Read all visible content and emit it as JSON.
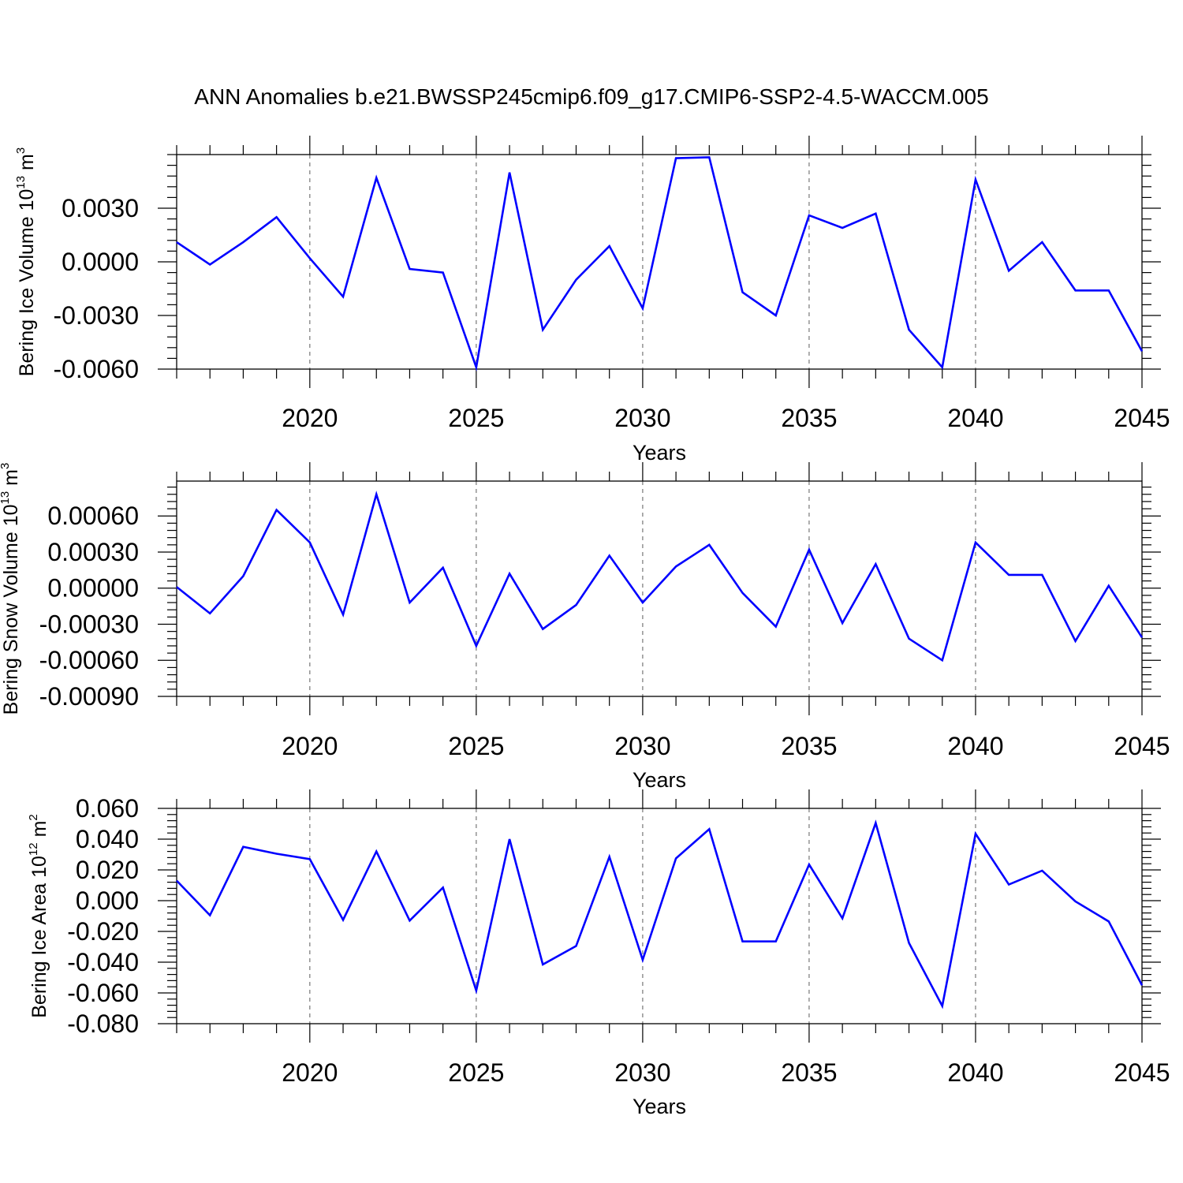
{
  "figure": {
    "title": "ANN Anomalies b.e21.BWSSP245cmip6.f09_g17.CMIP6-SSP2-4.5-WACCM.005"
  },
  "chart_data": [
    {
      "type": "line",
      "ylabel": {
        "text": "Bering Ice Volume 10",
        "sup": "13",
        "unit": " m",
        "unit_sup": "3"
      },
      "xlabel": "Years",
      "xlim": [
        2016,
        2045
      ],
      "ylim": [
        -0.006,
        0.006
      ],
      "x_ticks": [
        2020,
        2025,
        2030,
        2035,
        2040,
        2045
      ],
      "x_tick_labels": [
        "2020",
        "2025",
        "2030",
        "2035",
        "2040",
        "2045"
      ],
      "y_ticks": [
        0.003,
        0.0,
        -0.003,
        -0.006
      ],
      "y_tick_labels": [
        "0.0030",
        "0.0000",
        "-0.0030",
        "-0.0060"
      ],
      "line_color": "#0000ff",
      "vertical_grid": true,
      "series": [
        {
          "x": [
            2016,
            2017,
            2018,
            2019,
            2020,
            2021,
            2022,
            2023,
            2024,
            2025,
            2026,
            2027,
            2028,
            2029,
            2030,
            2031,
            2032,
            2033,
            2034,
            2035,
            2036,
            2037,
            2038,
            2039,
            2040,
            2041,
            2042,
            2043,
            2044,
            2045
          ],
          "y": [
            0.0011,
            -0.00015,
            0.0011,
            0.0025,
            0.0002,
            -0.00195,
            0.0047,
            -0.0004,
            -0.0006,
            -0.0059,
            0.005,
            -0.0038,
            -0.001,
            0.00088,
            -0.0026,
            0.0058,
            0.00585,
            -0.0017,
            -0.003,
            0.0026,
            0.0019,
            0.0027,
            -0.0038,
            -0.0059,
            0.0046,
            -0.0005,
            0.0011,
            -0.0016,
            -0.0016,
            -0.005
          ]
        }
      ]
    },
    {
      "type": "line",
      "ylabel": {
        "text": "Bering Snow Volume 10",
        "sup": "13",
        "unit": " m",
        "unit_sup": "3"
      },
      "xlabel": "Years",
      "xlim": [
        2016,
        2045
      ],
      "ylim": [
        -0.0009,
        0.00089
      ],
      "x_ticks": [
        2020,
        2025,
        2030,
        2035,
        2040,
        2045
      ],
      "x_tick_labels": [
        "2020",
        "2025",
        "2030",
        "2035",
        "2040",
        "2045"
      ],
      "y_ticks": [
        0.0006,
        0.0003,
        0.0,
        -0.0003,
        -0.0006,
        -0.0009
      ],
      "y_tick_labels": [
        "0.00060",
        "0.00030",
        "0.00000",
        "-0.00030",
        "-0.00060",
        "-0.00090"
      ],
      "line_color": "#0000ff",
      "vertical_grid": true,
      "series": [
        {
          "x": [
            2016,
            2017,
            2018,
            2019,
            2020,
            2021,
            2022,
            2023,
            2024,
            2025,
            2026,
            2027,
            2028,
            2029,
            2030,
            2031,
            2032,
            2033,
            2034,
            2035,
            2036,
            2037,
            2038,
            2039,
            2040,
            2041,
            2042,
            2043,
            2044,
            2045
          ],
          "y": [
            1e-05,
            -0.00021,
            0.0001,
            0.00065,
            0.00038,
            -0.00022,
            0.00078,
            -0.00012,
            0.00017,
            -0.00048,
            0.00012,
            -0.00034,
            -0.00014,
            0.00027,
            -0.00012,
            0.00018,
            0.00036,
            -4e-05,
            -0.00032,
            0.00032,
            -0.00029,
            0.0002,
            -0.00042,
            -0.0006,
            0.00038,
            0.00011,
            0.00011,
            -0.00044,
            2e-05,
            -0.00041
          ]
        }
      ]
    },
    {
      "type": "line",
      "ylabel": {
        "text": "Bering Ice Area 10",
        "sup": "12",
        "unit": " m",
        "unit_sup": "2"
      },
      "xlabel": "Years",
      "xlim": [
        2016,
        2045
      ],
      "ylim": [
        -0.08,
        0.06
      ],
      "x_ticks": [
        2020,
        2025,
        2030,
        2035,
        2040,
        2045
      ],
      "x_tick_labels": [
        "2020",
        "2025",
        "2030",
        "2035",
        "2040",
        "2045"
      ],
      "y_ticks": [
        0.06,
        0.04,
        0.02,
        0.0,
        -0.02,
        -0.04,
        -0.06,
        -0.08
      ],
      "y_tick_labels": [
        "0.060",
        "0.040",
        "0.020",
        "0.000",
        "-0.020",
        "-0.040",
        "-0.060",
        "-0.080"
      ],
      "line_color": "#0000ff",
      "vertical_grid": true,
      "series": [
        {
          "x": [
            2016,
            2017,
            2018,
            2019,
            2020,
            2021,
            2022,
            2023,
            2024,
            2025,
            2026,
            2027,
            2028,
            2029,
            2030,
            2031,
            2032,
            2033,
            2034,
            2035,
            2036,
            2037,
            2038,
            2039,
            2040,
            2041,
            2042,
            2043,
            2044,
            2045
          ],
          "y": [
            0.013,
            -0.0095,
            0.035,
            0.0305,
            0.027,
            -0.0125,
            0.032,
            -0.013,
            0.0085,
            -0.0585,
            0.04,
            -0.0415,
            -0.0295,
            0.0285,
            -0.0385,
            0.0275,
            0.0465,
            -0.0265,
            -0.0265,
            0.0235,
            -0.0115,
            0.0505,
            -0.0275,
            -0.0685,
            0.0435,
            0.0105,
            0.0195,
            -0.0005,
            -0.0135,
            -0.055
          ]
        }
      ]
    }
  ]
}
